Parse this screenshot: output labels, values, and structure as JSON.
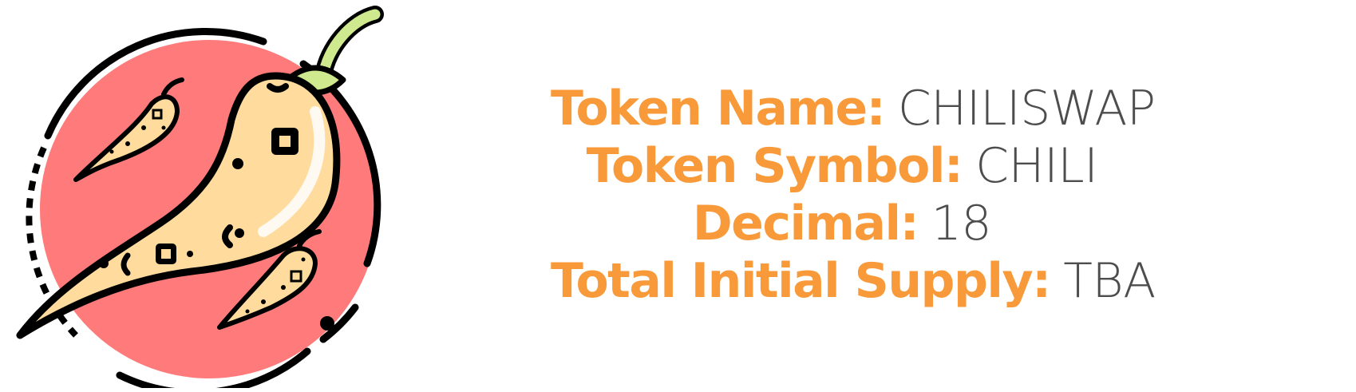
{
  "colors": {
    "accent": "#f99a3a",
    "value_text": "#4d4d4d",
    "circle": "#ff7b7b",
    "pepper": "#ffdb9e",
    "outline": "#000000",
    "stem": "#cfe98e"
  },
  "logo": {
    "icon": "chili-pepper-icon"
  },
  "token_info": {
    "rows": [
      {
        "label": "Token Name:",
        "value": "CHILISWAP"
      },
      {
        "label": "Token Symbol:",
        "value": "CHILI"
      },
      {
        "label": "Decimal:",
        "value": "18"
      },
      {
        "label": "Total Initial Supply:",
        "value": "TBA"
      }
    ]
  }
}
